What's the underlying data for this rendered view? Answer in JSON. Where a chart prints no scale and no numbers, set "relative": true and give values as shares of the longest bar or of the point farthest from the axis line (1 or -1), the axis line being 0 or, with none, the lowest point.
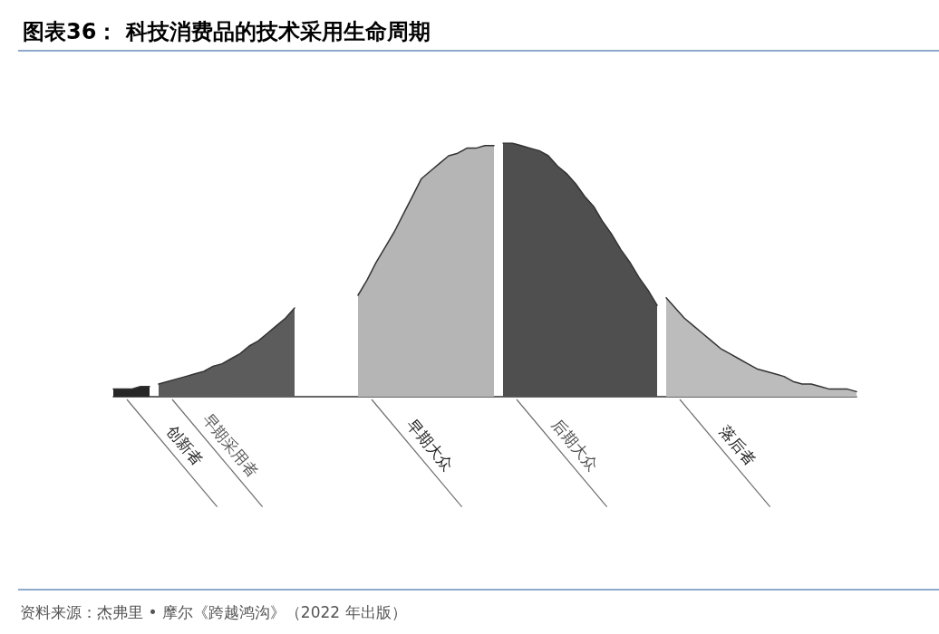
{
  "chart_data": {
    "type": "area",
    "relative": true,
    "title": "图表36： 科技消费品的技术采用生命周期",
    "annotations": [
      "资料来源：杰弗里 • 摩尔《跨越鸿沟》（2022 年出版）"
    ],
    "categories": [
      null,
      null,
      null,
      null,
      null,
      null,
      null,
      null,
      null,
      null,
      null,
      null,
      null,
      null,
      null,
      null,
      null,
      null,
      null,
      null,
      null,
      null,
      null,
      null,
      null,
      null,
      null,
      null,
      null,
      null,
      null,
      null,
      null,
      null,
      null,
      null,
      null,
      null,
      null,
      null,
      null,
      null,
      null,
      null,
      null,
      null,
      null,
      null,
      null,
      null,
      null,
      null,
      null,
      null,
      null,
      null,
      null,
      null,
      null,
      null,
      null,
      null,
      null,
      null,
      null,
      null,
      null,
      null,
      null,
      null,
      null,
      null,
      null,
      null,
      null,
      null,
      null,
      null,
      null,
      null,
      null,
      null,
      null
    ],
    "series": [
      {
        "name": "创新者",
        "color": "#262626",
        "values": [
          0.03,
          0.03,
          0.03,
          0.04,
          0.04,
          null,
          null,
          null,
          null,
          null,
          null,
          null,
          null,
          null,
          null,
          null,
          null,
          null,
          null,
          null,
          null,
          null,
          null,
          null,
          null,
          null,
          null,
          null,
          null,
          null,
          null,
          null,
          null,
          null,
          null,
          null,
          null,
          null,
          null,
          null,
          null,
          null,
          null,
          null,
          null,
          null,
          null,
          null,
          null,
          null,
          null,
          null,
          null,
          null,
          null,
          null,
          null,
          null,
          null,
          null,
          null,
          null,
          null,
          null,
          null,
          null,
          null,
          null,
          null,
          null,
          null,
          null,
          null,
          null,
          null,
          null,
          null,
          null,
          null,
          null,
          null,
          null,
          null
        ]
      },
      {
        "name": "早期采用者",
        "color": "#5c5c5c",
        "values": [
          null,
          null,
          null,
          null,
          null,
          0.05,
          0.06,
          0.07,
          0.08,
          0.09,
          0.1,
          0.12,
          0.13,
          0.15,
          0.17,
          0.2,
          0.22,
          0.25,
          0.28,
          0.31,
          0.35,
          null,
          null,
          null,
          null,
          null,
          null,
          null,
          null,
          null,
          null,
          null,
          null,
          null,
          null,
          null,
          null,
          null,
          null,
          null,
          null,
          null,
          null,
          null,
          null,
          null,
          null,
          null,
          null,
          null,
          null,
          null,
          null,
          null,
          null,
          null,
          null,
          null,
          null,
          null,
          null,
          null,
          null,
          null,
          null,
          null,
          null,
          null,
          null,
          null,
          null,
          null,
          null,
          null,
          null,
          null,
          null,
          null,
          null,
          null,
          null,
          null,
          null
        ]
      },
      {
        "name": "早期大众",
        "color": "#b5b5b5",
        "values": [
          null,
          null,
          null,
          null,
          null,
          null,
          null,
          null,
          null,
          null,
          null,
          null,
          null,
          null,
          null,
          null,
          null,
          null,
          null,
          null,
          null,
          null,
          null,
          null,
          null,
          null,
          null,
          0.4,
          0.46,
          0.53,
          0.59,
          0.65,
          0.72,
          0.79,
          0.86,
          0.89,
          0.92,
          0.95,
          0.96,
          0.98,
          0.98,
          0.99,
          0.99,
          null,
          null,
          null,
          null,
          null,
          null,
          null,
          null,
          null,
          null,
          null,
          null,
          null,
          null,
          null,
          null,
          null,
          null,
          null,
          null,
          null,
          null,
          null,
          null,
          null,
          null,
          null,
          null,
          null,
          null,
          null,
          null,
          null,
          null,
          null,
          null,
          null,
          null,
          null,
          null
        ]
      },
      {
        "name": "后期大众",
        "color": "#4f4f4f",
        "values": [
          null,
          null,
          null,
          null,
          null,
          null,
          null,
          null,
          null,
          null,
          null,
          null,
          null,
          null,
          null,
          null,
          null,
          null,
          null,
          null,
          null,
          null,
          null,
          null,
          null,
          null,
          null,
          null,
          null,
          null,
          null,
          null,
          null,
          null,
          null,
          null,
          null,
          null,
          null,
          null,
          null,
          null,
          null,
          1.0,
          1.0,
          0.99,
          0.98,
          0.97,
          0.95,
          0.91,
          0.88,
          0.84,
          0.79,
          0.75,
          0.69,
          0.64,
          0.58,
          0.53,
          0.47,
          0.42,
          0.36,
          null,
          null,
          null,
          null,
          null,
          null,
          null,
          null,
          null,
          null,
          null,
          null,
          null,
          null,
          null,
          null,
          null,
          null,
          null,
          null,
          null,
          null
        ]
      },
      {
        "name": "落后者",
        "color": "#bcbcbc",
        "values": [
          null,
          null,
          null,
          null,
          null,
          null,
          null,
          null,
          null,
          null,
          null,
          null,
          null,
          null,
          null,
          null,
          null,
          null,
          null,
          null,
          null,
          null,
          null,
          null,
          null,
          null,
          null,
          null,
          null,
          null,
          null,
          null,
          null,
          null,
          null,
          null,
          null,
          null,
          null,
          null,
          null,
          null,
          null,
          null,
          null,
          null,
          null,
          null,
          null,
          null,
          null,
          null,
          null,
          null,
          null,
          null,
          null,
          null,
          null,
          null,
          null,
          0.39,
          0.35,
          0.31,
          0.28,
          0.25,
          0.22,
          0.19,
          0.17,
          0.15,
          0.13,
          0.11,
          0.1,
          0.09,
          0.08,
          0.06,
          0.05,
          0.05,
          0.04,
          0.03,
          0.03,
          0.03,
          0.02
        ]
      }
    ]
  }
}
